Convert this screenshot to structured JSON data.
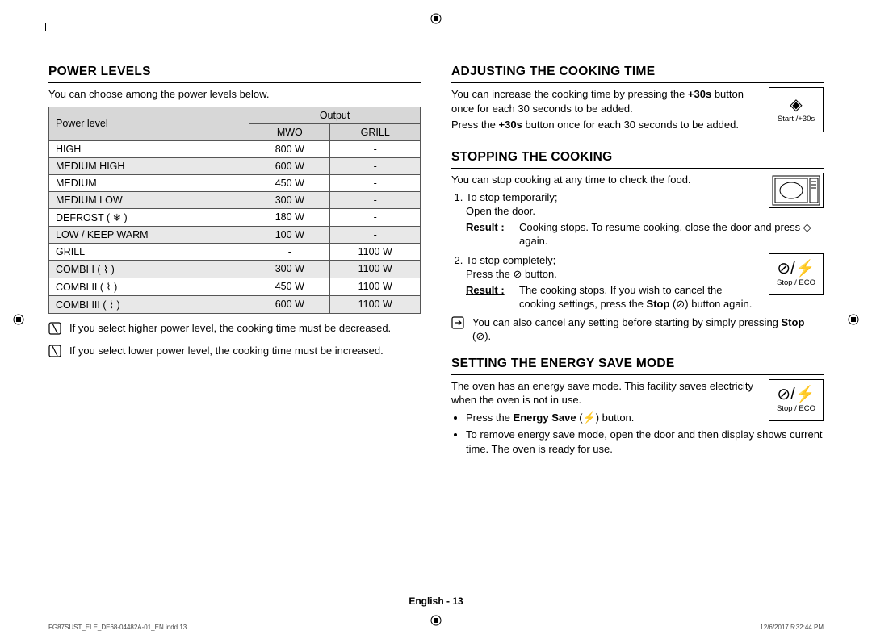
{
  "left": {
    "title": "POWER LEVELS",
    "intro": "You can choose among the power levels below.",
    "table": {
      "head": {
        "pl": "Power level",
        "out": "Output",
        "mwo": "MWO",
        "grill": "GRILL"
      },
      "rows": [
        {
          "pl": "HIGH",
          "mwo": "800 W",
          "grill": "-"
        },
        {
          "pl": "MEDIUM HIGH",
          "mwo": "600 W",
          "grill": "-"
        },
        {
          "pl": "MEDIUM",
          "mwo": "450 W",
          "grill": "-"
        },
        {
          "pl": "MEDIUM LOW",
          "mwo": "300 W",
          "grill": "-"
        },
        {
          "pl": "DEFROST ( ❄ )",
          "mwo": "180 W",
          "grill": "-"
        },
        {
          "pl": "LOW / KEEP WARM",
          "mwo": "100 W",
          "grill": "-"
        },
        {
          "pl": "GRILL",
          "mwo": "-",
          "grill": "1100 W"
        },
        {
          "pl": "COMBI I ( ⌇ )",
          "mwo": "300 W",
          "grill": "1100 W"
        },
        {
          "pl": "COMBI II ( ⌇ )",
          "mwo": "450 W",
          "grill": "1100 W"
        },
        {
          "pl": "COMBI III ( ⌇ )",
          "mwo": "600 W",
          "grill": "1100 W"
        }
      ]
    },
    "note1": "If you select higher power level, the cooking time must be decreased.",
    "note2": "If you select lower power level, the cooking time must be increased."
  },
  "right": {
    "adjust": {
      "title": "ADJUSTING THE COOKING TIME",
      "p1a": "You can increase the cooking time by pressing the ",
      "p1b": "+30s",
      "p1c": " button once for each 30 seconds to be added.",
      "p2a": "Press the ",
      "p2b": "+30s",
      "p2c": " button once for each 30 seconds to be added.",
      "btn": "Start /+30s"
    },
    "stop": {
      "title": "STOPPING THE COOKING",
      "intro": "You can stop cooking at any time to check the food.",
      "s1a": "To stop temporarily;",
      "s1b": "Open the door.",
      "r1_label": "Result :",
      "r1": "Cooking stops. To resume cooking, close the door and press ◇ again.",
      "s2a": "To stop completely;",
      "s2b": "Press the ⊘ button.",
      "r2_label": "Result :",
      "r2a": "The cooking stops. If you wish to cancel the cooking settings, press the ",
      "r2b": "Stop",
      "r2c": " (⊘) button again.",
      "btn": "Stop / ECO",
      "note": "You can also cancel any setting before starting by simply pressing ",
      "note_b": "Stop",
      "note_c": " (⊘)."
    },
    "energy": {
      "title": "SETTING THE ENERGY SAVE MODE",
      "intro": "The oven has an energy save mode. This facility saves electricity when the oven is not in use.",
      "b1a": "Press the ",
      "b1b": "Energy Save",
      "b1c": " (⚡) button.",
      "b2": "To remove energy save mode, open the door and then display shows current time. The oven is ready for use.",
      "btn": "Stop / ECO"
    }
  },
  "footer": {
    "page": "English - 13",
    "left": "FG87SUST_ELE_DE68-04482A-01_EN.indd   13",
    "right": "12/6/2017   5:32:44 PM"
  }
}
